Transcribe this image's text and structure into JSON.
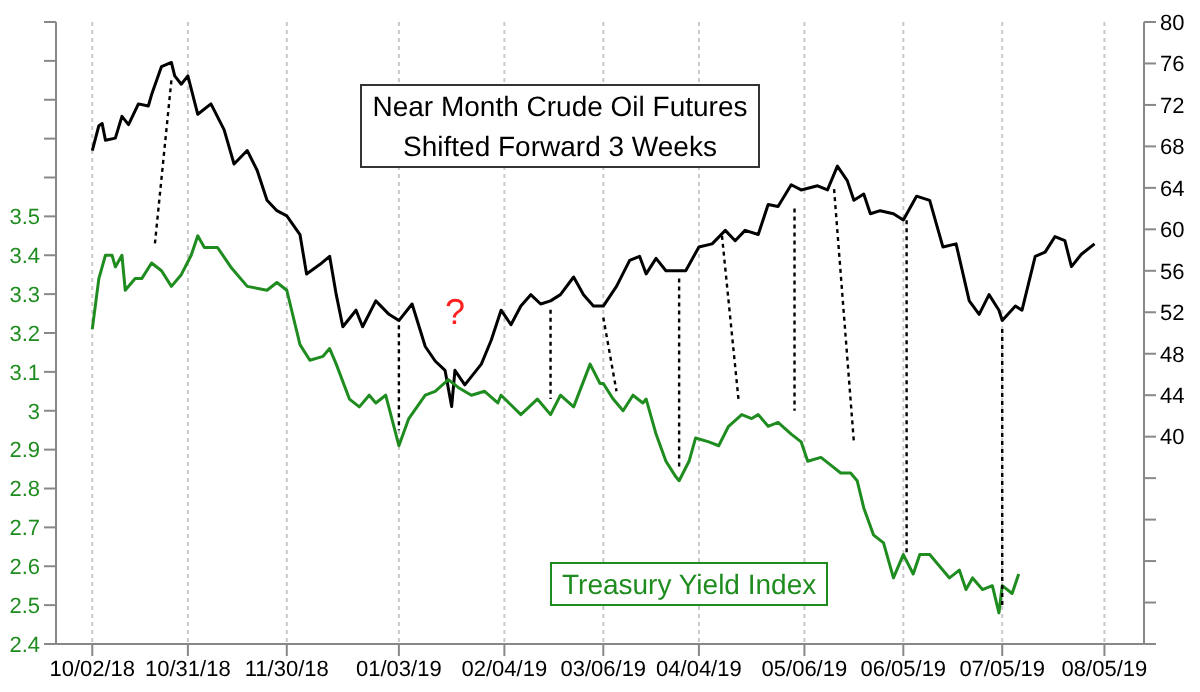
{
  "chart_data": {
    "type": "line",
    "series": [
      {
        "name": "Near Month Crude Oil Futures Shifted Forward 3 Weeks",
        "color": "#000000",
        "axis": "y2",
        "x": [
          "2018-10-02",
          "2018-10-04",
          "2018-10-05",
          "2018-10-06",
          "2018-10-09",
          "2018-10-11",
          "2018-10-13",
          "2018-10-16",
          "2018-10-19",
          "2018-10-20",
          "2018-10-23",
          "2018-10-26",
          "2018-10-27",
          "2018-10-29",
          "2018-10-31",
          "2018-11-03",
          "2018-11-07",
          "2018-11-11",
          "2018-11-14",
          "2018-11-18",
          "2018-11-21",
          "2018-11-24",
          "2018-11-27",
          "2018-11-30",
          "2018-12-04",
          "2018-12-06",
          "2018-12-10",
          "2018-12-13",
          "2018-12-15",
          "2018-12-17",
          "2018-12-21",
          "2018-12-23",
          "2018-12-27",
          "2018-12-31",
          "2019-01-03",
          "2019-01-07",
          "2019-01-11",
          "2019-01-14",
          "2019-01-17",
          "2019-01-19",
          "2019-01-20",
          "2019-01-23",
          "2019-01-28",
          "2019-01-31",
          "2019-02-03",
          "2019-02-06",
          "2019-02-09",
          "2019-02-12",
          "2019-02-15",
          "2019-02-18",
          "2019-02-21",
          "2019-02-25",
          "2019-02-28",
          "2019-03-03",
          "2019-03-06",
          "2019-03-10",
          "2019-03-14",
          "2019-03-17",
          "2019-03-19",
          "2019-03-22",
          "2019-03-25",
          "2019-03-31",
          "2019-04-04",
          "2019-04-08",
          "2019-04-12",
          "2019-04-15",
          "2019-04-18",
          "2019-04-22",
          "2019-04-25",
          "2019-04-28",
          "2019-05-02",
          "2019-05-05",
          "2019-05-10",
          "2019-05-13",
          "2019-05-16",
          "2019-05-19",
          "2019-05-21",
          "2019-05-24",
          "2019-05-26",
          "2019-05-29",
          "2019-06-02",
          "2019-06-05",
          "2019-06-09",
          "2019-06-13",
          "2019-06-17",
          "2019-06-21",
          "2019-06-25",
          "2019-06-28",
          "2019-07-01",
          "2019-07-04",
          "2019-07-05",
          "2019-07-09",
          "2019-07-11",
          "2019-07-15",
          "2019-07-18",
          "2019-07-21",
          "2019-07-24",
          "2019-07-26",
          "2019-07-29",
          "2019-08-02"
        ],
        "values": [
          67.6,
          70.0,
          70.2,
          68.6,
          68.8,
          70.9,
          70.1,
          72.1,
          71.9,
          73.0,
          75.7,
          76.1,
          74.8,
          74.0,
          74.8,
          71.1,
          72.1,
          69.6,
          66.3,
          67.6,
          65.7,
          62.8,
          61.8,
          61.3,
          59.5,
          55.7,
          56.6,
          57.4,
          53.7,
          50.6,
          52.2,
          50.6,
          53.1,
          51.8,
          51.2,
          52.8,
          48.7,
          47.3,
          46.4,
          42.9,
          46.4,
          45.0,
          47.0,
          49.3,
          52.2,
          50.8,
          52.6,
          53.7,
          52.8,
          53.1,
          53.7,
          55.4,
          53.7,
          52.6,
          52.6,
          54.5,
          57.0,
          57.4,
          55.7,
          57.2,
          56.0,
          56.0,
          58.3,
          58.6,
          59.9,
          58.9,
          59.9,
          59.5,
          62.4,
          62.2,
          64.3,
          63.8,
          64.2,
          63.8,
          66.1,
          64.7,
          62.8,
          63.4,
          61.5,
          61.8,
          61.5,
          60.9,
          63.2,
          62.8,
          58.3,
          58.6,
          53.1,
          51.8,
          53.7,
          52.2,
          51.2,
          52.6,
          52.2,
          57.4,
          57.8,
          59.3,
          58.9,
          56.4,
          57.6,
          58.6
        ]
      },
      {
        "name": "Treasury Yield Index",
        "color": "#1f8c1f",
        "x": [
          "2018-10-02",
          "2018-10-04",
          "2018-10-06",
          "2018-10-08",
          "2018-10-09",
          "2018-10-11",
          "2018-10-12",
          "2018-10-15",
          "2018-10-17",
          "2018-10-20",
          "2018-10-23",
          "2018-10-26",
          "2018-10-29",
          "2018-11-01",
          "2018-11-03",
          "2018-11-05",
          "2018-11-09",
          "2018-11-13",
          "2018-11-18",
          "2018-11-24",
          "2018-11-27",
          "2018-11-30",
          "2018-12-04",
          "2018-12-07",
          "2018-12-11",
          "2018-12-13",
          "2018-12-15",
          "2018-12-19",
          "2018-12-22",
          "2018-12-25",
          "2018-12-27",
          "2018-12-30",
          "2019-01-03",
          "2019-01-06",
          "2019-01-11",
          "2019-01-14",
          "2019-01-18",
          "2019-01-21",
          "2019-01-25",
          "2019-01-29",
          "2019-02-02",
          "2019-02-03",
          "2019-02-09",
          "2019-02-14",
          "2019-02-18",
          "2019-02-21",
          "2019-02-25",
          "2019-03-02",
          "2019-03-05",
          "2019-03-06",
          "2019-03-09",
          "2019-03-12",
          "2019-03-15",
          "2019-03-18",
          "2019-03-19",
          "2019-03-22",
          "2019-03-25",
          "2019-03-28",
          "2019-03-29",
          "2019-04-01",
          "2019-04-03",
          "2019-04-07",
          "2019-04-10",
          "2019-04-13",
          "2019-04-17",
          "2019-04-20",
          "2019-04-22",
          "2019-04-25",
          "2019-04-28",
          "2019-05-02",
          "2019-05-05",
          "2019-05-07",
          "2019-05-11",
          "2019-05-14",
          "2019-05-17",
          "2019-05-20",
          "2019-05-22",
          "2019-05-24",
          "2019-05-27",
          "2019-05-30",
          "2019-06-02",
          "2019-06-05",
          "2019-06-08",
          "2019-06-10",
          "2019-06-13",
          "2019-06-16",
          "2019-06-19",
          "2019-06-22",
          "2019-06-24",
          "2019-06-26",
          "2019-06-29",
          "2019-07-02",
          "2019-07-04",
          "2019-07-05",
          "2019-07-08",
          "2019-07-10"
        ],
        "values": [
          3.21,
          3.34,
          3.4,
          3.4,
          3.37,
          3.4,
          3.31,
          3.34,
          3.34,
          3.38,
          3.36,
          3.32,
          3.35,
          3.4,
          3.45,
          3.42,
          3.42,
          3.37,
          3.32,
          3.31,
          3.33,
          3.31,
          3.17,
          3.13,
          3.14,
          3.16,
          3.12,
          3.03,
          3.01,
          3.04,
          3.02,
          3.04,
          2.91,
          2.98,
          3.04,
          3.05,
          3.08,
          3.06,
          3.04,
          3.05,
          3.02,
          3.04,
          2.99,
          3.03,
          2.99,
          3.04,
          3.01,
          3.12,
          3.07,
          3.07,
          3.03,
          3.0,
          3.04,
          3.02,
          3.03,
          2.94,
          2.87,
          2.83,
          2.82,
          2.87,
          2.93,
          2.92,
          2.91,
          2.96,
          2.99,
          2.98,
          2.99,
          2.96,
          2.97,
          2.94,
          2.92,
          2.87,
          2.88,
          2.86,
          2.84,
          2.84,
          2.82,
          2.75,
          2.68,
          2.66,
          2.57,
          2.63,
          2.58,
          2.63,
          2.63,
          2.6,
          2.57,
          2.59,
          2.54,
          2.57,
          2.54,
          2.55,
          2.48,
          2.55,
          2.53,
          2.58
        ]
      },
      {
        "color": "#000000",
        "line_style": "dotted",
        "x": [
          "2018-10-26",
          "2018-10-21"
        ],
        "values": [
          3.85,
          3.43
        ]
      },
      {
        "color": "#000000",
        "line_style": "dotted",
        "x": [
          "2019-01-03",
          "2019-01-03"
        ],
        "values": [
          3.22,
          2.95
        ]
      },
      {
        "color": "#000000",
        "line_style": "dotted",
        "x": [
          "2019-02-18",
          "2019-02-18"
        ],
        "values": [
          3.26,
          3.03
        ]
      },
      {
        "color": "#000000",
        "line_style": "dotted",
        "x": [
          "2019-03-06",
          "2019-03-10"
        ],
        "values": [
          3.24,
          3.05
        ]
      },
      {
        "color": "#000000",
        "line_style": "dotted",
        "x": [
          "2019-03-29",
          "2019-03-29"
        ],
        "values": [
          3.34,
          2.85
        ]
      },
      {
        "color": "#000000",
        "line_style": "dotted",
        "x": [
          "2019-04-11",
          "2019-04-16"
        ],
        "values": [
          3.45,
          3.03
        ]
      },
      {
        "color": "#000000",
        "line_style": "dotted",
        "x": [
          "2019-05-03",
          "2019-05-03"
        ],
        "values": [
          3.52,
          3.0
        ]
      },
      {
        "color": "#000000",
        "line_style": "dotted",
        "x": [
          "2019-05-15",
          "2019-05-21"
        ],
        "values": [
          3.57,
          2.92
        ]
      },
      {
        "color": "#000000",
        "line_style": "dotted",
        "x": [
          "2019-06-06",
          "2019-06-06"
        ],
        "values": [
          3.49,
          2.63
        ]
      },
      {
        "color": "#000000",
        "line_style": "dotted",
        "x": [
          "2019-07-05",
          "2019-07-05"
        ],
        "values": [
          3.21,
          2.49
        ]
      }
    ],
    "xlim": [
      "2018-09-21",
      "2019-08-17"
    ],
    "xticks": [
      {
        "value": "2018-10-02",
        "label": "10/02/18"
      },
      {
        "value": "2018-10-31",
        "label": "10/31/18"
      },
      {
        "value": "2018-11-30",
        "label": "11/30/18"
      },
      {
        "value": "2019-01-03",
        "label": "01/03/19"
      },
      {
        "value": "2019-02-04",
        "label": "02/04/19"
      },
      {
        "value": "2019-03-06",
        "label": "03/06/19"
      },
      {
        "value": "2019-04-04",
        "label": "04/04/19"
      },
      {
        "value": "2019-05-06",
        "label": "05/06/19"
      },
      {
        "value": "2019-06-05",
        "label": "06/05/19"
      },
      {
        "value": "2019-07-05",
        "label": "07/05/19"
      },
      {
        "value": "2019-08-05",
        "label": "08/05/19"
      }
    ],
    "ylim": [
      2.4,
      4.0
    ],
    "yticks": [
      2.4,
      2.5,
      2.6,
      2.7,
      2.8,
      2.9,
      3,
      3.1,
      3.2,
      3.3,
      3.4,
      3.5,
      {
        "value": 3.6,
        "label": null
      },
      {
        "value": 3.7,
        "label": null
      },
      {
        "value": 3.8,
        "label": null
      },
      {
        "value": 3.9,
        "label": null
      },
      {
        "value": 4.0,
        "label": null
      }
    ],
    "y2lim": [
      20,
      80
    ],
    "y2ticks": [
      {
        "value": 20,
        "label": null
      },
      {
        "value": 24,
        "label": null
      },
      {
        "value": 28,
        "label": null
      },
      {
        "value": 32,
        "label": null
      },
      {
        "value": 36,
        "label": null
      },
      40,
      44,
      48,
      52,
      56,
      60,
      64,
      68,
      72,
      76,
      80
    ],
    "grid": "x",
    "annotations": [
      {
        "text": "?",
        "x": "2019-01-20",
        "y": 3.08
      }
    ]
  }
}
